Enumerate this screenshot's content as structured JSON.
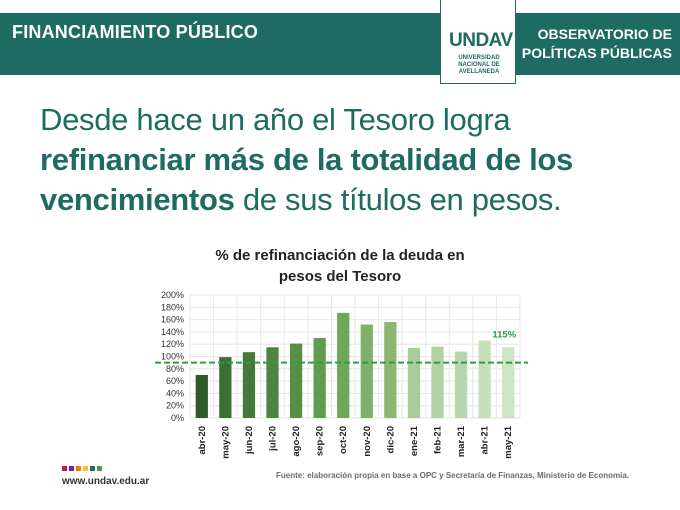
{
  "header": {
    "section_title": "FINANCIAMIENTO PÚBLICO",
    "observatorio_line1": "OBSERVATORIO DE",
    "observatorio_line2": "POLÍTICAS PÚBLICAS",
    "logo_text_main": "UNDAV",
    "logo_sub_line1": "UNIVERSIDAD",
    "logo_sub_line2": "NACIONAL DE",
    "logo_sub_line3": "AVELLANEDA"
  },
  "headline": {
    "part1": "Desde hace un año el Tesoro logra ",
    "bold": "refinanciar más de la totalidad de los vencimientos",
    "part2": " de sus títulos en pesos."
  },
  "footer": {
    "source": "Fuente: elaboración propia en base a OPC y Secretaría de Finanzas, Ministerio de Economía.",
    "url": "www.undav.edu.ar",
    "dot_colors": [
      "#c2185b",
      "#7b1fa2",
      "#f57c00",
      "#fbc02d",
      "#1d6b62",
      "#43a047"
    ]
  },
  "chart_data": {
    "type": "bar",
    "title_line1": "% de refinanciación de la deuda en",
    "title_line2": "pesos del Tesoro",
    "categories": [
      "abr-20",
      "may-20",
      "jun-20",
      "jul-20",
      "ago-20",
      "sep-20",
      "oct-20",
      "nov-20",
      "dic-20",
      "ene-21",
      "feb-21",
      "mar-21",
      "abr-21",
      "may-21"
    ],
    "values": [
      70,
      99,
      107,
      115,
      121,
      130,
      171,
      152,
      156,
      114,
      116,
      108,
      126,
      115
    ],
    "bar_colors": [
      "#2f5b2a",
      "#3c6f33",
      "#44793a",
      "#4d8441",
      "#578f47",
      "#629a4e",
      "#6ea858",
      "#7fb06a",
      "#8ab874",
      "#a9cc9a",
      "#b0d2a3",
      "#b8d6ac",
      "#c6dfbb",
      "#cfe4c5"
    ],
    "y_ticks": [
      "0%",
      "20%",
      "40%",
      "60%",
      "80%",
      "100%",
      "120%",
      "140%",
      "160%",
      "180%",
      "200%"
    ],
    "ylim": [
      0,
      200
    ],
    "reference_line": 90,
    "reference_color": "#2e9e44",
    "annotation": "115%",
    "grid": true
  }
}
